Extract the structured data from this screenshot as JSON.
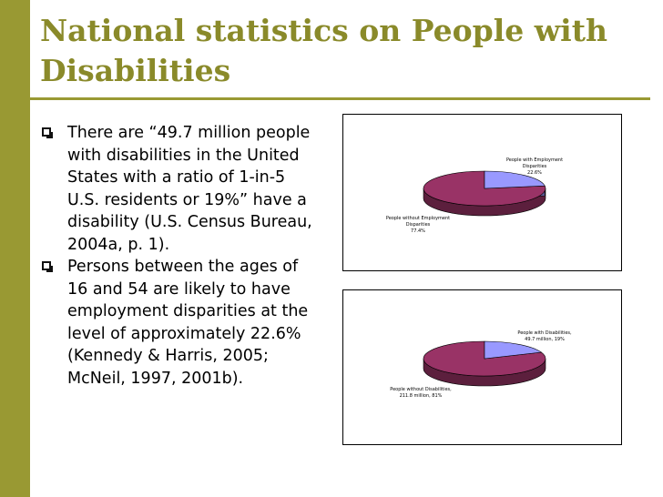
{
  "slide": {
    "title_line1": "National statistics on People with",
    "title_line2": "Disabilities",
    "bullets": [
      "There are “49.7 million people with disabilities in the United States with a ratio of 1-in-5 U.S. residents or 19%” have a disability (U.S. Census Bureau, 2004a, p. 1).",
      "Persons between the ages of 16 and 54 are likely to have employment disparities at the level of approximately 22.6% (Kennedy & Harris, 2005; McNeil, 1997, 2001b)."
    ],
    "colors": {
      "accent": "#999933",
      "title": "#8a8a2a",
      "slice_major": "#993366",
      "slice_minor": "#9999ff"
    }
  },
  "chart_data": [
    {
      "type": "pie",
      "slices": [
        {
          "label_lines": [
            "People with Employment",
            "Disparities",
            "22.6%"
          ],
          "value": 22.6,
          "color": "#9999ff"
        },
        {
          "label_lines": [
            "People without Employment",
            "Disparities",
            "77.4%"
          ],
          "value": 77.4,
          "color": "#993366"
        }
      ]
    },
    {
      "type": "pie",
      "slices": [
        {
          "label_lines": [
            "People with Disabilities,",
            "49.7 million, 19%"
          ],
          "value": 19,
          "color": "#9999ff"
        },
        {
          "label_lines": [
            "People without Disabilities,",
            "211.8 million, 81%"
          ],
          "value": 81,
          "color": "#993366"
        }
      ]
    }
  ]
}
